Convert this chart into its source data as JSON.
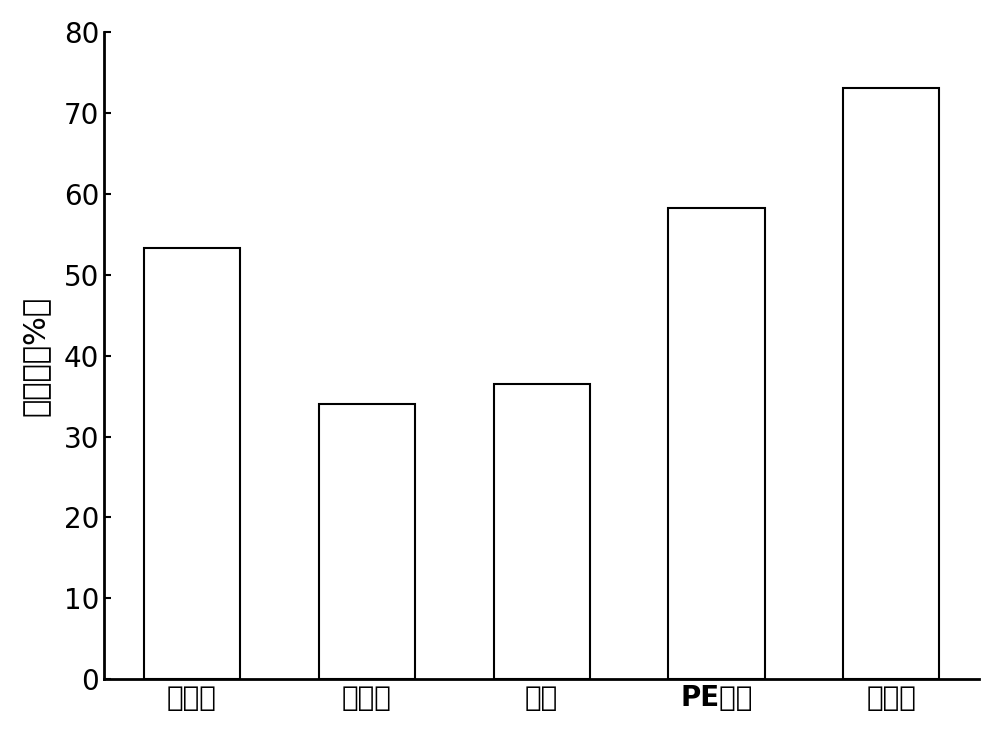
{
  "categories": [
    "未使用",
    "活性炭",
    "硅胶",
    "PE隔膜",
    "无纺布"
  ],
  "values": [
    53.3,
    34.0,
    36.5,
    58.2,
    73.0
  ],
  "bar_color": "#ffffff",
  "bar_edgecolor": "#000000",
  "bar_linewidth": 1.5,
  "ylabel": "萃取率（%）",
  "ylim": [
    0,
    80
  ],
  "yticks": [
    0,
    10,
    20,
    30,
    40,
    50,
    60,
    70,
    80
  ],
  "ylabel_fontsize": 22,
  "tick_fontsize": 20,
  "xtick_fontsize": 20,
  "background_color": "#ffffff",
  "bar_width": 0.55,
  "spine_linewidth": 2.0,
  "tick_linewidth": 2.0
}
